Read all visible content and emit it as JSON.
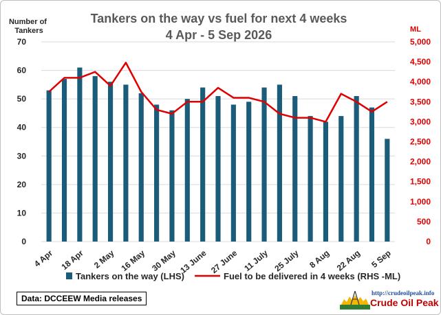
{
  "chart_data": {
    "type": "bar",
    "title": "Tankers on the way vs fuel for next 4 weeks",
    "subtitle": "4 Apr - 5 Sep 2026",
    "ylabel_left": "Number of Tankers",
    "ylabel_right": "ML",
    "ylim_left": [
      0,
      70
    ],
    "ylim_right": [
      0,
      5000
    ],
    "yticks_left": [
      "0",
      "10",
      "20",
      "30",
      "40",
      "50",
      "60",
      "70"
    ],
    "yticks_right": [
      "0",
      "500",
      "1,000",
      "1,500",
      "2,000",
      "2,500",
      "3,000",
      "3,500",
      "4,000",
      "4,500",
      "5,000"
    ],
    "x_tick_labels": [
      "4 Apr",
      "18 Apr",
      "2 May",
      "16 May",
      "30 May",
      "13 June",
      "27 June",
      "11 July",
      "25 July",
      "8 Aug",
      "22 Aug",
      "5 Sep"
    ],
    "categories": [
      "4 Apr",
      "11 Apr",
      "18 Apr",
      "25 Apr",
      "2 May",
      "9 May",
      "16 May",
      "23 May",
      "30 May",
      "6 June",
      "13 June",
      "20 June",
      "27 June",
      "4 July",
      "11 July",
      "18 July",
      "25 July",
      "1 Aug",
      "8 Aug",
      "15 Aug",
      "22 Aug",
      "29 Aug",
      "5 Sep"
    ],
    "series": [
      {
        "name": "Tankers on the way (LHS)",
        "type": "bar",
        "axis": "left",
        "color": "#1a5c7a",
        "values": [
          53,
          57,
          61,
          58,
          56,
          55,
          52,
          48,
          46,
          50,
          54,
          51,
          48,
          49,
          54,
          55,
          51,
          44,
          42,
          44,
          51,
          47,
          36
        ]
      },
      {
        "name": "Fuel to be delivered in 4 weeks (RHS -ML)",
        "type": "line",
        "axis": "right",
        "color": "#e00000",
        "values": [
          3750,
          4100,
          4100,
          4250,
          3900,
          4480,
          3750,
          3300,
          3200,
          3500,
          3500,
          3850,
          3600,
          3600,
          3500,
          3200,
          3100,
          3100,
          3000,
          3700,
          3500,
          3250,
          3500
        ]
      }
    ],
    "grid": true,
    "legend_position": "bottom"
  },
  "source_note": "Data: DCCEEW Media releases",
  "logo": {
    "url": "http://crudeoilpeak.info",
    "name": "Crude Oil Peak"
  },
  "colors": {
    "bar": "#1a5c7a",
    "line": "#e00000",
    "axis_left_text": "#262626",
    "axis_right_text": "#e00000",
    "grid": "#d9d9d9"
  }
}
